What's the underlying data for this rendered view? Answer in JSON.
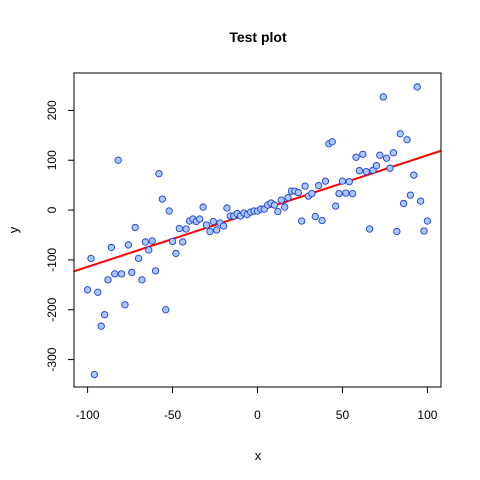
{
  "chart_data": {
    "type": "scatter",
    "title": "Test plot",
    "xlabel": "x",
    "ylabel": "y",
    "xlim": [
      -108,
      108
    ],
    "ylim": [
      -355,
      275
    ],
    "xticks": [
      "-100",
      "-50",
      "0",
      "50",
      "100"
    ],
    "yticks": [
      "-300",
      "-200",
      "-100",
      "0",
      "100",
      "200"
    ],
    "grid": false,
    "legend": "none",
    "colors": {
      "point_fill": "#a8c8ff",
      "point_stroke": "#1f3bd6",
      "fit_line": "#ff0000"
    },
    "points": [
      [
        -100,
        -160
      ],
      [
        -98,
        -97
      ],
      [
        -96,
        -330
      ],
      [
        -94,
        -165
      ],
      [
        -92,
        -233
      ],
      [
        -90,
        -210
      ],
      [
        -88,
        -140
      ],
      [
        -86,
        -75
      ],
      [
        -84,
        -128
      ],
      [
        -82,
        100
      ],
      [
        -80,
        -128
      ],
      [
        -78,
        -190
      ],
      [
        -76,
        -70
      ],
      [
        -74,
        -125
      ],
      [
        -72,
        -35
      ],
      [
        -70,
        -97
      ],
      [
        -68,
        -140
      ],
      [
        -66,
        -64
      ],
      [
        -64,
        -80
      ],
      [
        -62,
        -62
      ],
      [
        -60,
        -122
      ],
      [
        -58,
        73
      ],
      [
        -56,
        22
      ],
      [
        -54,
        -200
      ],
      [
        -52,
        -2
      ],
      [
        -50,
        -63
      ],
      [
        -48,
        -87
      ],
      [
        -46,
        -37
      ],
      [
        -44,
        -64
      ],
      [
        -42,
        -38
      ],
      [
        -40,
        -22
      ],
      [
        -38,
        -18
      ],
      [
        -36,
        -23
      ],
      [
        -34,
        -18
      ],
      [
        -32,
        6
      ],
      [
        -30,
        -30
      ],
      [
        -28,
        -43
      ],
      [
        -26,
        -23
      ],
      [
        -24,
        -40
      ],
      [
        -22,
        -26
      ],
      [
        -20,
        -32
      ],
      [
        -18,
        4
      ],
      [
        -16,
        -12
      ],
      [
        -14,
        -12
      ],
      [
        -12,
        -7
      ],
      [
        -10,
        -12
      ],
      [
        -8,
        -6
      ],
      [
        -6,
        -9
      ],
      [
        -4,
        -4
      ],
      [
        -2,
        -2
      ],
      [
        0,
        -2
      ],
      [
        2,
        2
      ],
      [
        4,
        2
      ],
      [
        6,
        10
      ],
      [
        8,
        14
      ],
      [
        10,
        10
      ],
      [
        12,
        -3
      ],
      [
        14,
        20
      ],
      [
        16,
        6
      ],
      [
        18,
        25
      ],
      [
        20,
        38
      ],
      [
        22,
        38
      ],
      [
        24,
        35
      ],
      [
        26,
        -22
      ],
      [
        28,
        48
      ],
      [
        30,
        28
      ],
      [
        32,
        33
      ],
      [
        34,
        -13
      ],
      [
        36,
        49
      ],
      [
        38,
        -21
      ],
      [
        40,
        58
      ],
      [
        42,
        133
      ],
      [
        44,
        137
      ],
      [
        46,
        8
      ],
      [
        48,
        33
      ],
      [
        50,
        58
      ],
      [
        52,
        34
      ],
      [
        54,
        57
      ],
      [
        56,
        33
      ],
      [
        58,
        106
      ],
      [
        60,
        79
      ],
      [
        62,
        112
      ],
      [
        64,
        77
      ],
      [
        66,
        -38
      ],
      [
        68,
        80
      ],
      [
        70,
        89
      ],
      [
        72,
        110
      ],
      [
        74,
        227
      ],
      [
        76,
        104
      ],
      [
        78,
        84
      ],
      [
        80,
        115
      ],
      [
        82,
        -43
      ],
      [
        84,
        153
      ],
      [
        86,
        13
      ],
      [
        88,
        141
      ],
      [
        90,
        30
      ],
      [
        92,
        70
      ],
      [
        94,
        247
      ],
      [
        96,
        18
      ],
      [
        98,
        -42
      ],
      [
        100,
        -22
      ]
    ],
    "fit_line": {
      "intercept": -2,
      "slope": 1.12
    }
  }
}
